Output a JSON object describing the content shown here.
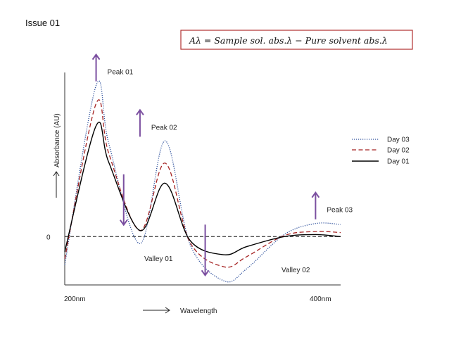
{
  "issue_label": "Issue 01",
  "formula": "Aλ = Sample sol. abs.λ − Pure solvent abs.λ",
  "chart_data": {
    "type": "line",
    "title": "",
    "xlabel": "Wavelength",
    "ylabel": "Absorbance (AU)",
    "x_tick_labels": [
      "200nm",
      "400nm"
    ],
    "y_tick_labels": [
      "0"
    ],
    "xlim": [
      185,
      405
    ],
    "ylim": [
      -0.48,
      1.63
    ],
    "grid": false,
    "legend_position": "right",
    "baseline": 0,
    "x": [
      185,
      210,
      220,
      245,
      265,
      285,
      312,
      330,
      360,
      385,
      405
    ],
    "series": [
      {
        "name": "Day 03",
        "color": "#2a4d9a",
        "style": "dotted",
        "values": [
          -0.28,
          1.5,
          0.93,
          -0.07,
          0.95,
          -0.08,
          -0.44,
          -0.32,
          0.02,
          0.13,
          0.12
        ]
      },
      {
        "name": "Day 02",
        "color": "#a52222",
        "style": "dashed",
        "values": [
          -0.22,
          1.32,
          0.83,
          0.06,
          0.73,
          -0.06,
          -0.3,
          -0.2,
          0.01,
          0.05,
          0.04
        ]
      },
      {
        "name": "Day 01",
        "color": "#000000",
        "style": "solid",
        "values": [
          -0.15,
          1.1,
          0.74,
          0.06,
          0.53,
          -0.04,
          -0.18,
          -0.1,
          0.0,
          0.02,
          0.0
        ]
      }
    ],
    "annotations": [
      {
        "text": "Peak 01",
        "direction": "up",
        "x": 210,
        "y": 1.5
      },
      {
        "text": "Peak 02",
        "direction": "up",
        "x": 245,
        "y": 0.95
      },
      {
        "text": "Peak 03",
        "direction": "up",
        "x": 385,
        "y": 0.13
      },
      {
        "text": "Valley 01",
        "direction": "down",
        "x": 232,
        "y": 0.06
      },
      {
        "text": "Valley 02",
        "direction": "down",
        "x": 297,
        "y": -0.44
      }
    ],
    "arrow_color": "#7b4fa0"
  }
}
